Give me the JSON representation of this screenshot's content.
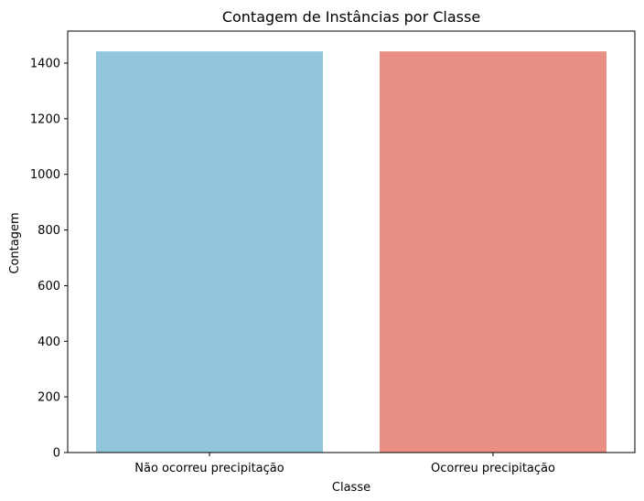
{
  "chart_data": {
    "type": "bar",
    "title": "Contagem de Instâncias por Classe",
    "xlabel": "Classe",
    "ylabel": "Contagem",
    "categories": [
      "Não ocorreu precipitação",
      "Ocorreu precipitação"
    ],
    "values": [
      1442,
      1442
    ],
    "colors": [
      "#92c6dd",
      "#e88e83"
    ],
    "ylim": [
      0,
      1515
    ],
    "yticks": [
      0,
      200,
      400,
      600,
      800,
      1000,
      1200,
      1400
    ],
    "grid": false,
    "legend": "none"
  }
}
